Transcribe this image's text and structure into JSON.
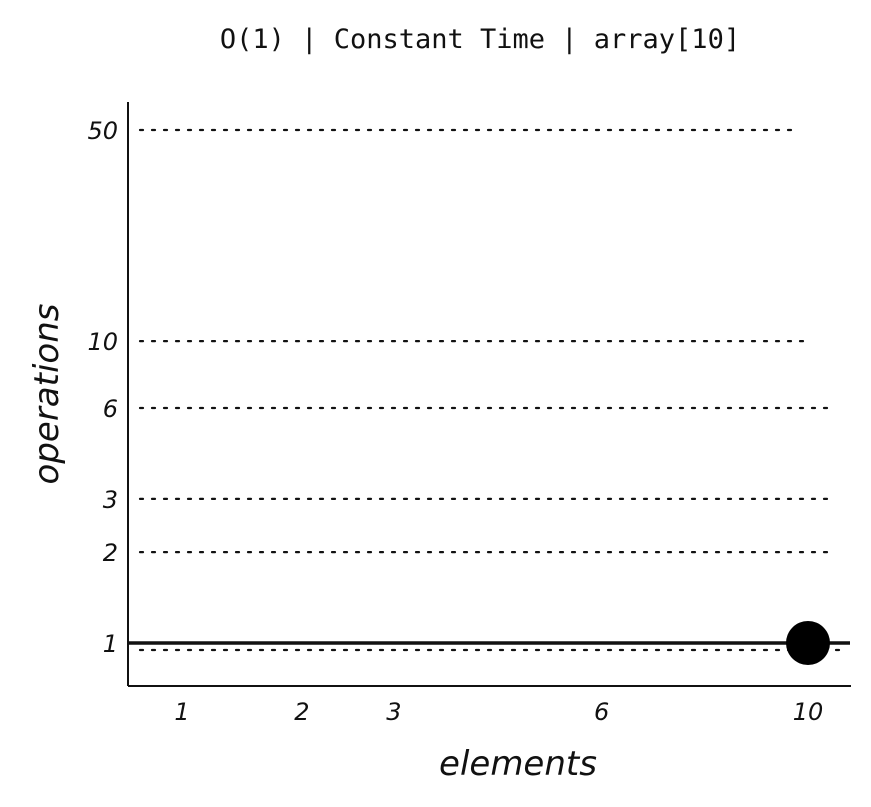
{
  "chart_data": {
    "type": "line",
    "title": "O(1) | Constant Time | array[10]",
    "xlabel": "elements",
    "ylabel": "operations",
    "x_ticks": [
      1,
      2,
      3,
      6,
      10
    ],
    "y_ticks": [
      1,
      2,
      3,
      6,
      10,
      50
    ],
    "y_scale": "log",
    "ylim": [
      0.8,
      60
    ],
    "grid": "horizontal-dotted",
    "series": [
      {
        "x": [
          1,
          10
        ],
        "y": [
          1,
          1
        ],
        "marker_at": 10,
        "color": "#000000"
      }
    ]
  }
}
